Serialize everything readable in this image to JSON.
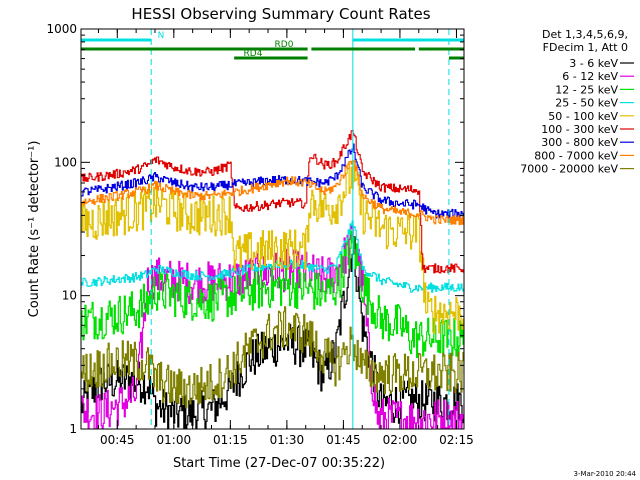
{
  "chart_data": {
    "type": "line",
    "title": "HESSI Observing Summary Count Rates",
    "xlabel": "Start Time (27-Dec-07 00:35:22)",
    "ylabel": "Count Rate (s⁻¹ detector⁻¹)",
    "x_tick_labels": [
      "00:45",
      "01:00",
      "01:15",
      "01:30",
      "01:45",
      "02:00",
      "02:15"
    ],
    "x_ticks_minutes": [
      45,
      60,
      75,
      90,
      105,
      120,
      135
    ],
    "xlim_minutes": [
      35.37,
      137
    ],
    "y_scale": "log",
    "ylim": [
      1,
      1000
    ],
    "y_tick_labels": [
      "1",
      "10",
      "100",
      "1000"
    ],
    "y_ticks": [
      1,
      10,
      100,
      1000
    ],
    "legend_header": [
      "Det 1,3,4,5,6,9,",
      "FDecim 1, Att 0"
    ],
    "legend_position": "right",
    "grid": false,
    "series": [
      {
        "name": "3 - 6 keV",
        "color": "#000000",
        "x": [
          35.4,
          40,
          45,
          50,
          53,
          55,
          60,
          65,
          70,
          75,
          80,
          85,
          90,
          95,
          100,
          103,
          106,
          107.5,
          110,
          115,
          120,
          125,
          130
        ],
        "y": [
          1.5,
          2.2,
          2.3,
          2.3,
          2.2,
          1.5,
          1.3,
          1.3,
          1.4,
          2.0,
          3.3,
          4.0,
          4.5,
          4.0,
          2.5,
          4,
          14,
          25,
          6,
          1.5,
          1.6,
          1.6,
          1.6
        ]
      },
      {
        "name": "6 - 12 keV",
        "color": "#e000e0",
        "x": [
          35.4,
          40,
          45,
          50,
          53,
          55,
          60,
          65,
          70,
          75,
          80,
          85,
          90,
          95,
          100,
          103,
          106,
          107.5,
          110,
          112,
          114
        ],
        "y": [
          1.4,
          1.3,
          1.5,
          1.8,
          12.5,
          13.8,
          13.0,
          12.5,
          12.6,
          13.2,
          14.0,
          14.8,
          15.5,
          15.0,
          13.5,
          15,
          22,
          28,
          12,
          3,
          1.2
        ]
      },
      {
        "name": "12 - 25 keV",
        "color": "#00e000",
        "x": [
          35.4,
          40,
          45,
          50,
          53,
          55,
          60,
          65,
          70,
          75,
          80,
          85,
          90,
          95,
          100,
          103,
          106,
          107.5,
          110,
          115,
          120,
          123,
          126
        ],
        "y": [
          6.5,
          6.8,
          7.2,
          7.8,
          9.0,
          11.0,
          10.0,
          9.3,
          9.2,
          9.8,
          10.8,
          11.5,
          11.8,
          11.3,
          10.2,
          11.5,
          20,
          24,
          12,
          6.5,
          6.0,
          4.8,
          4.8
        ]
      },
      {
        "name": "25 - 50 keV",
        "color": "#00e0e0",
        "x": [
          35.4,
          40,
          45,
          50,
          53,
          55,
          60,
          65,
          70,
          75,
          80,
          85,
          90,
          95,
          100,
          103,
          106,
          107.5,
          110,
          115,
          120,
          123
        ],
        "y": [
          12.5,
          12.8,
          13.3,
          13.8,
          14.5,
          16.0,
          15.0,
          14.2,
          14.0,
          14.8,
          15.8,
          16.8,
          17.5,
          16.8,
          15.5,
          17,
          28,
          36,
          16,
          13.0,
          12.0,
          11.5
        ]
      },
      {
        "name": "50 - 100 keV",
        "color": "#e0c000",
        "x": [
          35.4,
          40,
          45,
          50,
          53,
          55,
          60,
          65,
          70,
          75,
          76,
          80,
          85,
          90,
          95,
          96,
          100,
          103,
          106,
          107.5,
          110,
          115,
          120,
          125,
          127,
          130,
          135
        ],
        "y": [
          35,
          37,
          40,
          43,
          46,
          50,
          44,
          40,
          40,
          42,
          20,
          21,
          22,
          22.5,
          22,
          54,
          45,
          48,
          70,
          80,
          42,
          32,
          30,
          30,
          7.5,
          7.5,
          7.5
        ]
      },
      {
        "name": "100 - 300 keV",
        "color": "#e00000",
        "x": [
          35.4,
          40,
          45,
          50,
          53,
          55,
          60,
          65,
          70,
          75,
          76,
          80,
          85,
          90,
          95,
          96,
          100,
          103,
          106,
          107.5,
          110,
          115,
          120,
          125,
          126,
          130,
          135
        ],
        "y": [
          75,
          78,
          82,
          88,
          95,
          105,
          92,
          85,
          85,
          95,
          45,
          46,
          48,
          50,
          49,
          115,
          95,
          100,
          145,
          170,
          85,
          65,
          63,
          62,
          16,
          16,
          16
        ]
      },
      {
        "name": "300 - 800 keV",
        "color": "#0000e0",
        "x": [
          35.4,
          40,
          45,
          50,
          53,
          55,
          60,
          65,
          70,
          75,
          80,
          85,
          90,
          95,
          100,
          103,
          106,
          107.5,
          110,
          115,
          120,
          125,
          128,
          130,
          135
        ],
        "y": [
          60,
          62,
          66,
          70,
          74,
          78,
          70,
          65,
          65,
          68,
          70,
          73,
          74,
          72,
          70,
          78,
          110,
          130,
          65,
          52,
          49,
          48,
          42,
          41,
          41
        ]
      },
      {
        "name": "800 - 7000 keV",
        "color": "#ff8000",
        "x": [
          35.4,
          40,
          45,
          50,
          53,
          55,
          60,
          65,
          70,
          75,
          80,
          85,
          90,
          95,
          100,
          103,
          106,
          107.5,
          110,
          115,
          120,
          125,
          128,
          130,
          135
        ],
        "y": [
          50,
          53,
          56,
          60,
          63,
          67,
          60,
          56,
          56,
          59,
          63,
          68,
          73,
          70,
          60,
          66,
          92,
          110,
          56,
          45,
          42,
          41,
          38,
          37,
          37
        ]
      },
      {
        "name": "7000 - 20000 keV",
        "color": "#808000",
        "x": [
          35.4,
          40,
          45,
          50,
          53,
          55,
          60,
          65,
          70,
          75,
          80,
          85,
          90,
          95,
          100,
          103,
          106,
          107.5,
          110,
          115,
          120,
          125,
          130,
          135
        ],
        "y": [
          2.6,
          2.9,
          3.2,
          3.2,
          3.0,
          2.4,
          2.0,
          2.0,
          2.2,
          2.8,
          4.0,
          5.2,
          5.8,
          5.2,
          3.5,
          3,
          4,
          4.5,
          2.8,
          2.6,
          2.6,
          2.6,
          2.6,
          2.6
        ]
      }
    ],
    "status_bars": [
      {
        "label": "N",
        "color": "#00e0e0",
        "segments": [
          [
            35.4,
            54
          ],
          [
            107.5,
            137
          ]
        ]
      },
      {
        "label": "RD0",
        "color": "#008000",
        "segments": [
          [
            35.4,
            95.5
          ],
          [
            96.5,
            124
          ],
          [
            125,
            137
          ]
        ]
      },
      {
        "label": "RD4",
        "color": "#008000",
        "segments": [
          [
            76,
            95.5
          ],
          [
            133,
            137
          ]
        ]
      }
    ],
    "vertical_markers": [
      {
        "color": "#00e0e0",
        "style": "dashed",
        "x": [
          54,
          133
        ]
      },
      {
        "color": "#00e0e0",
        "style": "solid",
        "x": [
          107.5
        ]
      }
    ]
  },
  "footer": {
    "date_stamp": "3-Mar-2010 20:44"
  }
}
